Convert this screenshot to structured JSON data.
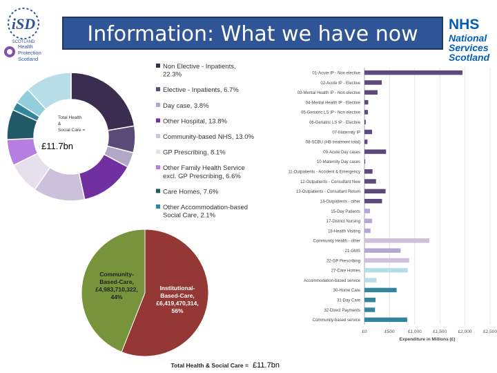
{
  "header": {
    "title": "Information: What we have now"
  },
  "logos": {
    "isd_top": "iSD",
    "isd_bottom": "SCOTLAND",
    "hps_lines": [
      "Health",
      "Protection",
      "Scotland"
    ],
    "nhs_lines": [
      "NHS",
      "National",
      "Services",
      "Scotland"
    ]
  },
  "colors": {
    "title_bg": "#2f5597",
    "nhs_blue": "#005eb8"
  },
  "chart_data": [
    {
      "type": "pie",
      "variant": "donut",
      "center_label": [
        "Total Health",
        "&",
        "Social Care ="
      ],
      "center_value": "£11.7bn",
      "legend_position": "right",
      "slices": [
        {
          "label": "Non Elective - Inpatients, 22.3%",
          "value": 22.3,
          "color": "#3b2d4f"
        },
        {
          "label": "Elective - Inpatients, 6.7%",
          "value": 6.7,
          "color": "#5a4a78"
        },
        {
          "label": "Day case, 3.8%",
          "value": 3.8,
          "color": "#b1a7c6"
        },
        {
          "label": "Other Hospital, 13.8%",
          "value": 13.8,
          "color": "#7030a0"
        },
        {
          "label": "Community-based NHS, 13.0%",
          "value": 13.0,
          "color": "#ccc0da"
        },
        {
          "label": "GP Prescribing, 8.1%",
          "value": 8.1,
          "color": "#e6e0ec"
        },
        {
          "label": "Other Family Health Service excl. GP Prescribing, 6.6%",
          "value": 6.6,
          "color": "#b57ee0"
        },
        {
          "label": "Care Homes, 7.6%",
          "value": 7.6,
          "color": "#215968"
        },
        {
          "label": "Other Accommodation-based Social Care, 2.1%",
          "value": 2.1,
          "color": "#31859c"
        },
        {
          "label": "",
          "value": 4.2,
          "color": "#92cddc"
        },
        {
          "label": "",
          "value": 11.8,
          "color": "#b7dee8"
        }
      ]
    },
    {
      "type": "bar",
      "orientation": "horizontal",
      "xlabel": "Expenditure in Millions (£)",
      "x_ticks": [
        "£0",
        "£500",
        "£1,000",
        "£1,500",
        "£2,000",
        "£2,500"
      ],
      "xlim": [
        0,
        2500
      ],
      "grid": true,
      "categories": [
        "01-Acute IP - Non elective",
        "02-Acute IP - Elective",
        "03-Mental Health IP - Non elective",
        "04-Mental Health IP - Elective",
        "05-Geriatric LS IP - Non elective",
        "06-Geriatric LS IP - Elective",
        "07-Maternity IP",
        "08-SCBU (HB treatment total)",
        "09-Acute Day cases",
        "10-Maternity Day cases",
        "11-Outpatients - Accident & Emergency",
        "12-Outpatients - Consultant New",
        "13-Outpatients - Consultant Return",
        "14-Outpatients - other",
        "15-Day Patients",
        "17-District Nursing",
        "18-Health Visiting",
        "Community Health - other",
        "21-GMS",
        "22-GP Prescribing",
        "27-Care Homes",
        "Accommodation-based service",
        "30-Home Care",
        "31-Day Care",
        "32-Direct Payments",
        "Community-based service"
      ],
      "values": [
        1950,
        345,
        260,
        75,
        70,
        25,
        150,
        60,
        430,
        15,
        160,
        230,
        420,
        350,
        110,
        150,
        120,
        1290,
        720,
        890,
        860,
        240,
        640,
        220,
        210,
        850
      ],
      "colors": [
        "#5c4a7d",
        "#5c4a7d",
        "#5c4a7d",
        "#5c4a7d",
        "#5c4a7d",
        "#5c4a7d",
        "#5c4a7d",
        "#5c4a7d",
        "#5c4a7d",
        "#5c4a7d",
        "#5c4a7d",
        "#5c4a7d",
        "#5c4a7d",
        "#5c4a7d",
        "#b4a7d6",
        "#b4a7d6",
        "#b4a7d6",
        "#ccc0da",
        "#b4a7d6",
        "#ccc0da",
        "#b7dee8",
        "#b7dee8",
        "#31859c",
        "#31859c",
        "#31859c",
        "#31859c"
      ]
    },
    {
      "type": "pie",
      "title": "Total Health & Social Care =",
      "title_value": "£11.7bn",
      "slices": [
        {
          "label": "Institutional-Based-Care, £6,419,470,314, 56%",
          "lines": [
            "Institutional-",
            "Based-Care,",
            "£6,419,470,314,",
            "56%"
          ],
          "value": 56,
          "color": "#953735"
        },
        {
          "label": "Community-Based-Care, £4,983,710,322, 44%",
          "lines": [
            "Community-",
            "Based-Care,",
            "£4,983,710,322,",
            "44%"
          ],
          "value": 44,
          "color": "#77933c"
        }
      ]
    }
  ]
}
